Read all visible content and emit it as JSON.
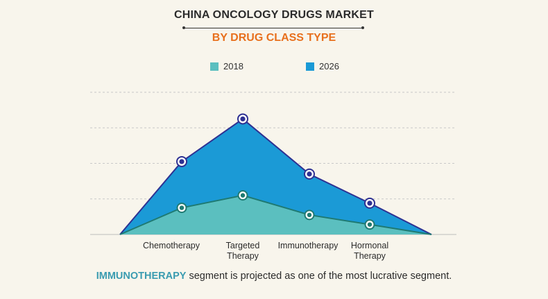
{
  "title": "CHINA ONCOLOGY DRUGS MARKET",
  "subtitle": "BY DRUG CLASS TYPE",
  "footer": {
    "highlight": "IMMUNOTHERAPY",
    "text": " segment is projected as one of the most lucrative segment."
  },
  "colors": {
    "series_2018_fill": "#5bbfbf",
    "series_2018_line": "#1f7a72",
    "series_2026_fill": "#1b9ad6",
    "series_2026_line": "#2e3192",
    "grid": "#c8c8c8",
    "background": "#f8f5ec",
    "subtitle": "#e8701d"
  },
  "chart_data": {
    "type": "area",
    "title": "CHINA ONCOLOGY DRUGS MARKET",
    "subtitle": "BY DRUG CLASS TYPE",
    "xlabel": "",
    "ylabel": "",
    "categories": [
      "Chemotherapy",
      "Targeted Therapy",
      "Immunotherapy",
      "Hormonal Therapy"
    ],
    "category_lines": [
      [
        "Chemotherapy"
      ],
      [
        "Targeted",
        "Therapy"
      ],
      [
        "Immunotherapy"
      ],
      [
        "Hormonal",
        "Therapy"
      ]
    ],
    "series": [
      {
        "name": "2018",
        "values": [
          0.75,
          1.1,
          0.55,
          0.28
        ],
        "color": "#5bbfbf"
      },
      {
        "name": "2026",
        "values": [
          2.05,
          3.25,
          1.7,
          0.88
        ],
        "color": "#1b9ad6"
      }
    ],
    "ylim": [
      0,
      4
    ],
    "grid": true,
    "legend": "top-center",
    "y_ticks_shown": false
  }
}
